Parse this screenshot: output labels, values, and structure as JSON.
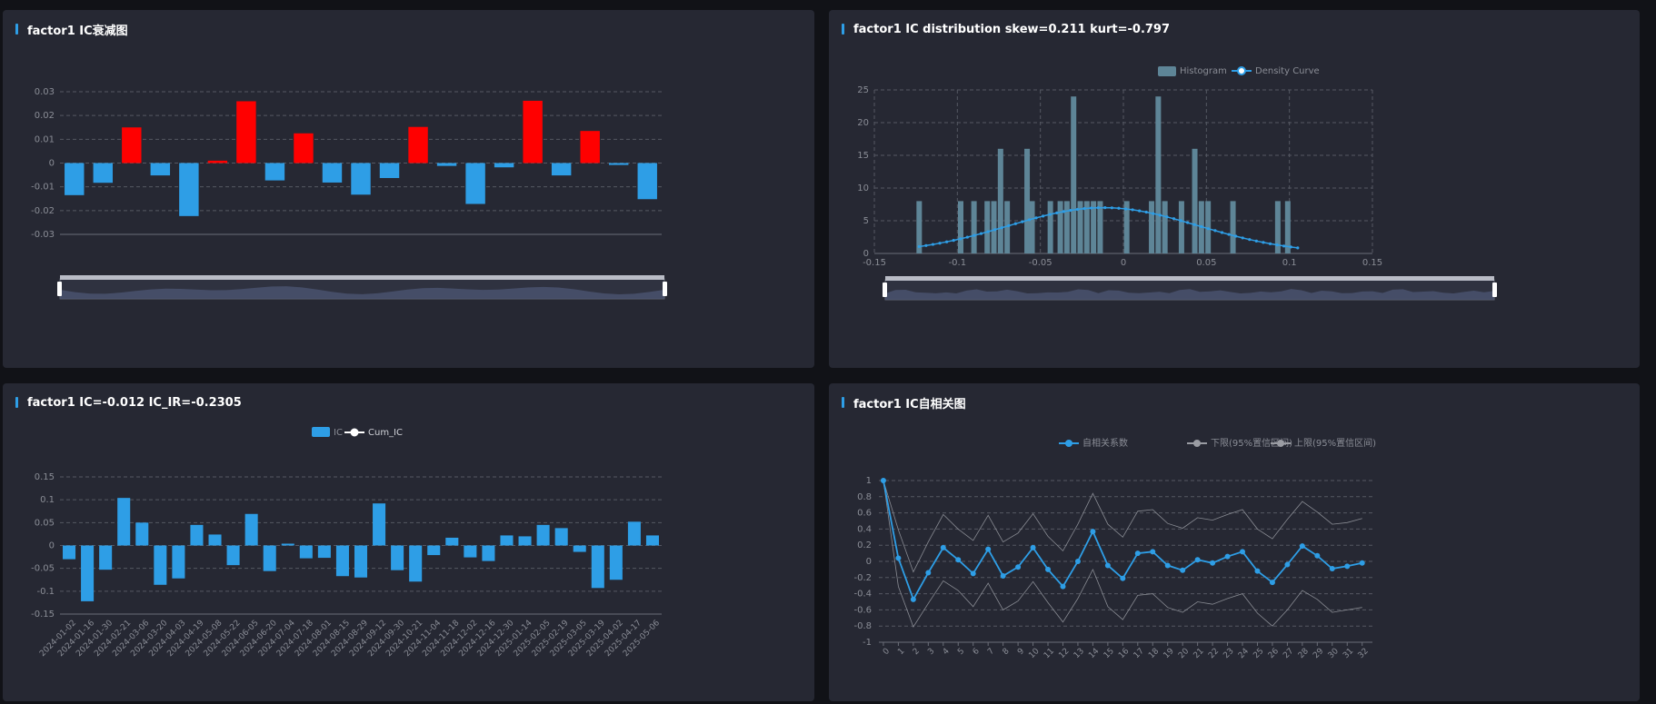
{
  "panels": [
    {
      "title": "factor1 IC衰减图",
      "chart_data": {
        "type": "bar",
        "ylim": [
          -0.03,
          0.03
        ],
        "y_ticks": [
          0.03,
          0.02,
          0.01,
          0,
          -0.01,
          -0.02,
          -0.03
        ],
        "positive_color": "#ff0000",
        "negative_color": "#2e9ee6",
        "values": [
          -0.0135,
          -0.0083,
          0.015,
          -0.0052,
          -0.0223,
          0.001,
          0.026,
          -0.0073,
          0.0125,
          -0.0082,
          -0.0133,
          -0.0063,
          0.0152,
          -0.0012,
          -0.0172,
          -0.0018,
          0.0262,
          -0.0052,
          0.0135,
          -0.0008,
          -0.0152
        ]
      }
    },
    {
      "title": "factor1 IC distribution skew=0.211 kurt=-0.797",
      "chart_data": {
        "type": "bar",
        "legend": [
          "Histogram",
          "Density Curve"
        ],
        "bar_color": "#5e8597",
        "line_color": "#2e9ee6",
        "xlim": [
          -0.15,
          0.15
        ],
        "ylim": [
          0,
          25
        ],
        "x_ticks": [
          -0.15,
          -0.1,
          -0.05,
          0,
          0.05,
          0.1,
          0.15
        ],
        "y_ticks": [
          0,
          5,
          10,
          15,
          20,
          25
        ],
        "histogram": {
          "x": [
            -0.123,
            -0.098,
            -0.09,
            -0.082,
            -0.078,
            -0.074,
            -0.07,
            -0.058,
            -0.055,
            -0.044,
            -0.038,
            -0.034,
            -0.03,
            -0.026,
            -0.022,
            -0.018,
            -0.014,
            0.002,
            0.017,
            0.021,
            0.025,
            0.035,
            0.043,
            0.047,
            0.051,
            0.066,
            0.093,
            0.099
          ],
          "values": [
            8,
            8,
            8,
            8,
            8,
            16,
            8,
            16,
            8,
            8,
            8,
            8,
            24,
            8,
            8,
            8,
            8,
            8,
            8,
            24,
            8,
            8,
            16,
            8,
            8,
            8,
            8,
            8
          ]
        },
        "density_curve": {
          "x_start": -0.123,
          "x_end": 0.105,
          "mean": -0.012,
          "std": 0.057,
          "peak": 7
        }
      }
    },
    {
      "title": "factor1 IC=-0.012 IC_IR=-0.2305",
      "chart_data": {
        "type": "bar",
        "legend": [
          "IC",
          "Cum_IC"
        ],
        "bar_color": "#2e9ee6",
        "ylim": [
          -0.15,
          0.15
        ],
        "y_ticks": [
          0.15,
          0.1,
          0.05,
          0,
          -0.05,
          -0.1,
          -0.15
        ],
        "categories": [
          "2024-01-02",
          "2024-01-16",
          "2024-01-30",
          "2024-02-21",
          "2024-03-06",
          "2024-03-20",
          "2024-04-03",
          "2024-04-19",
          "2024-05-08",
          "2024-05-22",
          "2024-06-05",
          "2024-06-20",
          "2024-07-04",
          "2024-07-18",
          "2024-08-01",
          "2024-08-15",
          "2024-08-29",
          "2024-09-12",
          "2024-09-30",
          "2024-10-21",
          "2024-11-04",
          "2024-11-18",
          "2024-12-02",
          "2024-12-16",
          "2024-12-30",
          "2025-01-14",
          "2025-02-05",
          "2025-02-19",
          "2025-03-05",
          "2025-03-19",
          "2025-04-02",
          "2025-04-17",
          "2025-05-06"
        ],
        "values": [
          -0.03,
          -0.122,
          -0.053,
          0.104,
          0.05,
          -0.086,
          -0.072,
          0.045,
          0.024,
          -0.043,
          0.069,
          -0.056,
          0.004,
          -0.028,
          -0.027,
          -0.067,
          -0.07,
          0.092,
          -0.054,
          -0.079,
          -0.021,
          0.017,
          -0.026,
          -0.034,
          0.022,
          0.02,
          0.045,
          0.038,
          -0.014,
          -0.093,
          -0.075,
          0.052,
          0.022
        ]
      }
    },
    {
      "title": "factor1 IC自相关图",
      "chart_data": {
        "type": "line",
        "legend": [
          "自相关系数",
          "下限(95%置信区间)",
          "上限(95%置信区间)"
        ],
        "ylim": [
          -1,
          1
        ],
        "y_ticks": [
          1,
          0.8,
          0.6,
          0.4,
          0.2,
          0,
          -0.2,
          -0.4,
          -0.6,
          -0.8,
          -1
        ],
        "x": [
          0,
          1,
          2,
          3,
          4,
          5,
          6,
          7,
          8,
          9,
          10,
          11,
          12,
          13,
          14,
          15,
          16,
          17,
          18,
          19,
          20,
          21,
          22,
          23,
          24,
          25,
          26,
          27,
          28,
          29,
          30,
          31,
          32
        ],
        "series": [
          {
            "name": "自相关系数",
            "color": "#2e9ee6",
            "values": [
              1,
              0.04,
              -0.47,
              -0.14,
              0.17,
              0.02,
              -0.15,
              0.15,
              -0.18,
              -0.07,
              0.17,
              -0.1,
              -0.31,
              0.0,
              0.37,
              -0.05,
              -0.21,
              0.1,
              0.12,
              -0.05,
              -0.11,
              0.02,
              -0.02,
              0.06,
              0.12,
              -0.12,
              -0.26,
              -0.04,
              0.19,
              0.07,
              -0.09,
              -0.06,
              -0.02
            ]
          },
          {
            "name": "下限(95%置信区间)",
            "color": "#9a9ca3",
            "values": [
              1,
              -0.31,
              -0.81,
              -0.52,
              -0.24,
              -0.36,
              -0.56,
              -0.27,
              -0.6,
              -0.49,
              -0.25,
              -0.51,
              -0.75,
              -0.46,
              -0.1,
              -0.56,
              -0.72,
              -0.42,
              -0.4,
              -0.57,
              -0.63,
              -0.5,
              -0.53,
              -0.46,
              -0.4,
              -0.64,
              -0.8,
              -0.6,
              -0.36,
              -0.47,
              -0.63,
              -0.6,
              -0.57
            ]
          },
          {
            "name": "上限(95%置信区间)",
            "color": "#9a9ca3",
            "values": [
              1,
              0.39,
              -0.13,
              0.24,
              0.58,
              0.4,
              0.26,
              0.57,
              0.24,
              0.35,
              0.59,
              0.31,
              0.13,
              0.46,
              0.84,
              0.46,
              0.3,
              0.62,
              0.64,
              0.47,
              0.41,
              0.54,
              0.51,
              0.58,
              0.64,
              0.4,
              0.28,
              0.52,
              0.74,
              0.61,
              0.46,
              0.48,
              0.53
            ]
          }
        ]
      }
    }
  ]
}
